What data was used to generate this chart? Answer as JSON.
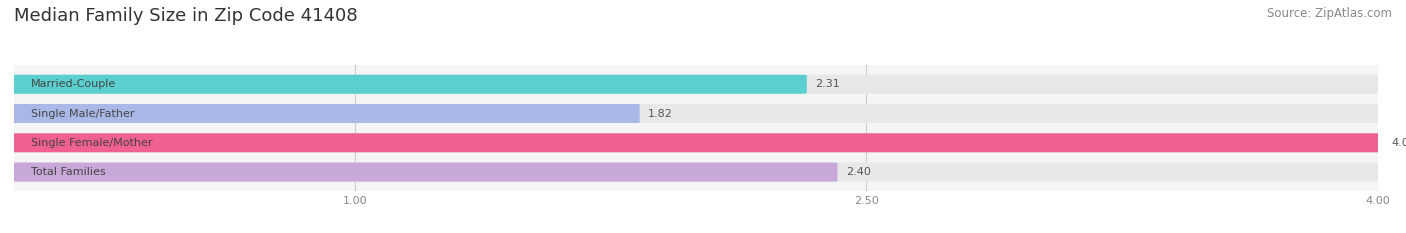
{
  "title": "Median Family Size in Zip Code 41408",
  "source": "Source: ZipAtlas.com",
  "categories": [
    "Married-Couple",
    "Single Male/Father",
    "Single Female/Mother",
    "Total Families"
  ],
  "values": [
    2.31,
    1.82,
    4.0,
    2.4
  ],
  "bar_colors": [
    "#5bcfcf",
    "#aab8e8",
    "#f06090",
    "#c8a8d8"
  ],
  "bg_bar_color": "#e8e8e8",
  "xlim": [
    0.0,
    4.0
  ],
  "xmin": 0.0,
  "xmax": 4.0,
  "xticks": [
    1.0,
    2.5,
    4.0
  ],
  "xtick_labels": [
    "1.00",
    "2.50",
    "4.00"
  ],
  "bar_height": 0.62,
  "background_color": "#ffffff",
  "plot_bg_color": "#f5f5f5",
  "title_fontsize": 13,
  "source_fontsize": 8.5,
  "label_fontsize": 8,
  "value_fontsize": 8,
  "grid_color": "#cccccc",
  "label_color": "#444444",
  "value_color": "#555555",
  "tick_color": "#888888"
}
